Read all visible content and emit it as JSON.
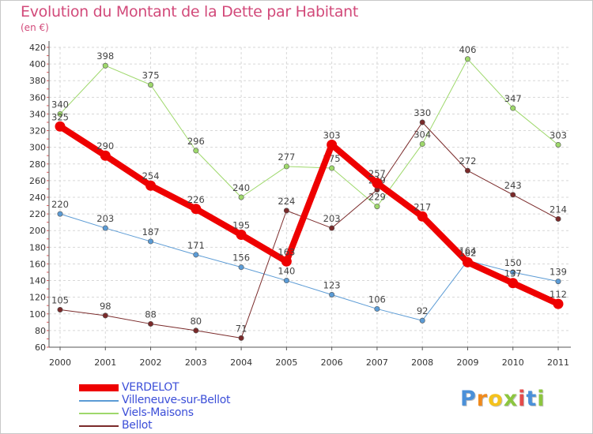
{
  "header": {
    "title": "Evolution du Montant de la Dette par Habitant",
    "subtitle": "(en €)"
  },
  "logo": {
    "text": "Proxiti",
    "letters": [
      {
        "char": "P",
        "color": "#4a90d9"
      },
      {
        "char": "r",
        "color": "#f08a1c"
      },
      {
        "char": "o",
        "color": "#f4c21c"
      },
      {
        "char": "x",
        "color": "#8cc63f"
      },
      {
        "char": "i",
        "color": "#e34b4b"
      },
      {
        "char": "t",
        "color": "#4a90d9"
      },
      {
        "char": "i",
        "color": "#8cc63f"
      }
    ]
  },
  "chart_data": {
    "type": "line",
    "title": "Evolution du Montant de la Dette par Habitant",
    "subtitle": "(en €)",
    "x": [
      "2000",
      "2001",
      "2002",
      "2003",
      "2004",
      "2005",
      "2006",
      "2007",
      "2008",
      "2009",
      "2010",
      "2011"
    ],
    "ylim": [
      60,
      420
    ],
    "yticks": [
      60,
      80,
      100,
      120,
      140,
      160,
      180,
      200,
      220,
      240,
      260,
      280,
      300,
      320,
      340,
      360,
      380,
      400,
      420
    ],
    "grid": true,
    "legend_position": "bottom-left",
    "series": [
      {
        "name": "Villeneuve-sur-Bellot",
        "color": "#5b9bd5",
        "width": 1,
        "values": [
          220,
          203,
          187,
          171,
          156,
          140,
          123,
          106,
          92,
          164,
          150,
          139
        ]
      },
      {
        "name": "Viels-Maisons",
        "color": "#9ed86b",
        "width": 1,
        "values": [
          340,
          398,
          375,
          296,
          240,
          277,
          275,
          229,
          304,
          406,
          347,
          303
        ]
      },
      {
        "name": "Bellot",
        "color": "#7a2a2a",
        "width": 1,
        "values": [
          105,
          98,
          88,
          80,
          71,
          224,
          203,
          249,
          330,
          272,
          243,
          214
        ]
      },
      {
        "name": "VERDELOT",
        "color": "#ee0000",
        "width": 8,
        "values": [
          325,
          290,
          254,
          226,
          195,
          163,
          303,
          257,
          217,
          162,
          137,
          112
        ]
      }
    ],
    "legend_order": [
      "VERDELOT",
      "Villeneuve-sur-Bellot",
      "Viels-Maisons",
      "Bellot"
    ]
  }
}
